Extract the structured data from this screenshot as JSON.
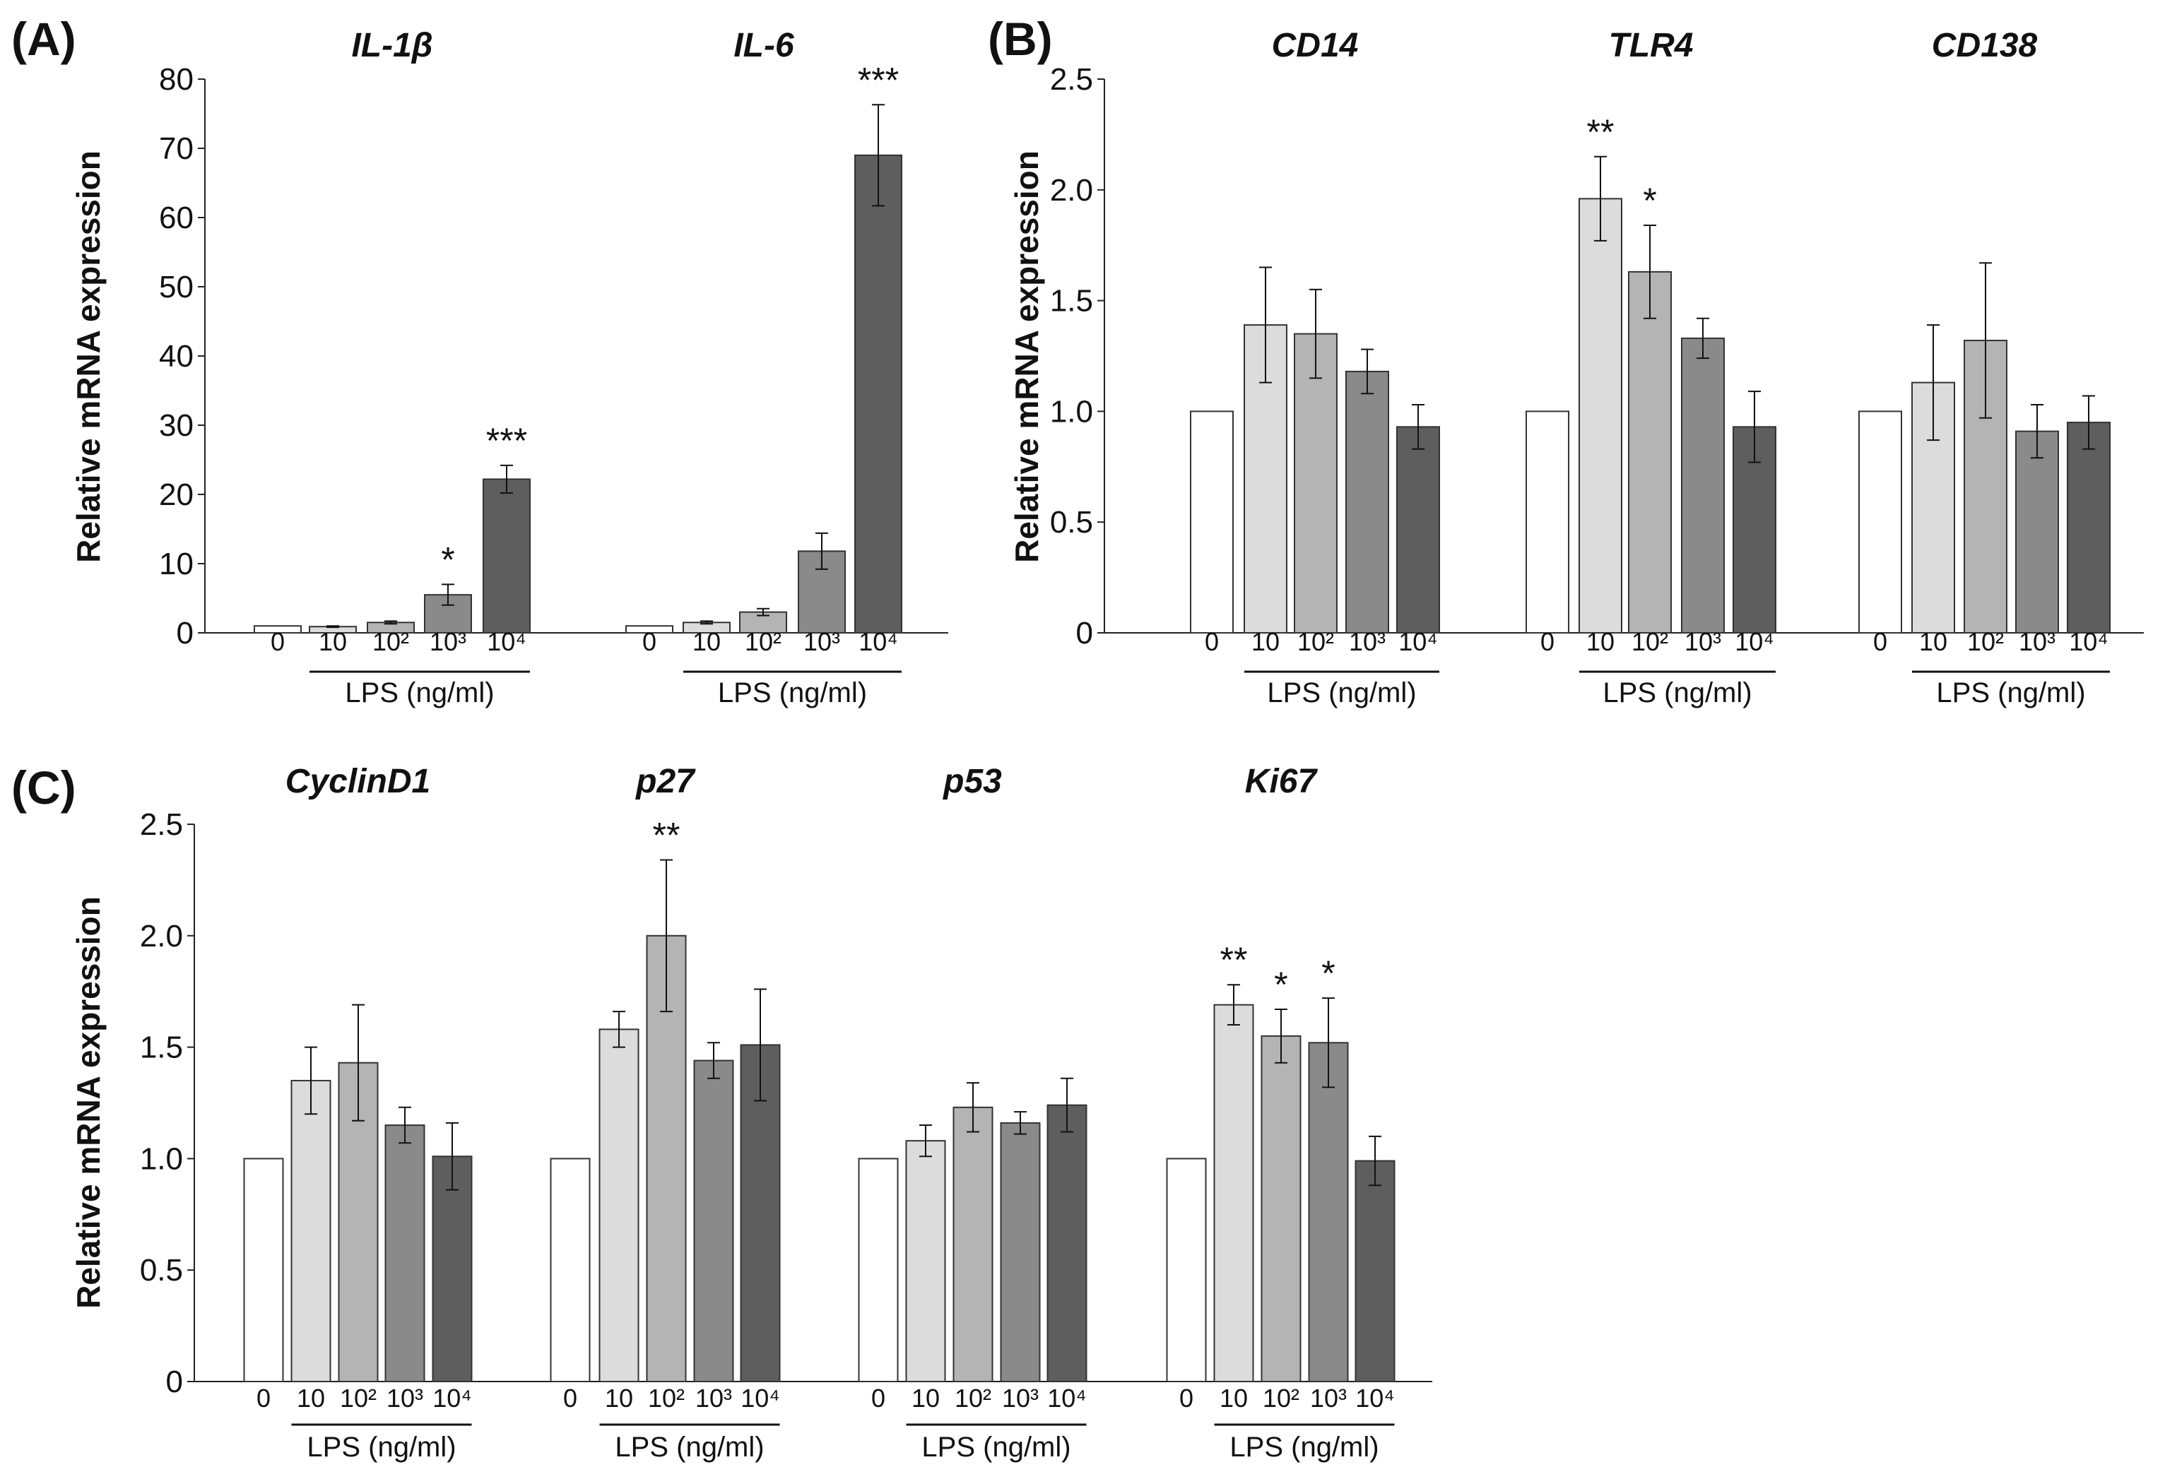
{
  "chart_data": {
    "type": "bar",
    "ylabel": "Relative mRNA expression",
    "xlabel": "LPS (ng/ml)",
    "categories": [
      "0",
      "10",
      "10²",
      "10³",
      "10⁴"
    ],
    "colors": [
      "#ffffff",
      "#dcdcdc",
      "#b4b4b4",
      "#8a8a8a",
      "#5e5e5e"
    ],
    "panels": [
      {
        "label": "(A)",
        "ylim": [
          0,
          80
        ],
        "yticks": [
          "0",
          "10",
          "20",
          "30",
          "40",
          "50",
          "60",
          "70",
          "80"
        ],
        "groups": [
          {
            "title": "IL-1β",
            "values": [
              1,
              0.9,
              1.5,
              5.5,
              22.2
            ],
            "errors": [
              0,
              0.1,
              0.2,
              1.5,
              2.0
            ],
            "stars": [
              "",
              "",
              "",
              "*",
              "***"
            ]
          },
          {
            "title": "IL-6",
            "values": [
              1,
              1.5,
              3.0,
              11.8,
              69.0
            ],
            "errors": [
              0,
              0.2,
              0.5,
              2.6,
              7.3
            ],
            "stars": [
              "",
              "",
              "",
              "",
              "***"
            ]
          }
        ]
      },
      {
        "label": "(B)",
        "ylim": [
          0,
          2.5
        ],
        "yticks": [
          "0",
          "0.5",
          "1.0",
          "1.5",
          "2.0",
          "2.5"
        ],
        "groups": [
          {
            "title": "CD14",
            "values": [
              1,
              1.39,
              1.35,
              1.18,
              0.93
            ],
            "errors": [
              0,
              0.26,
              0.2,
              0.1,
              0.1
            ],
            "stars": [
              "",
              "",
              "",
              "",
              ""
            ]
          },
          {
            "title": "TLR4",
            "values": [
              1,
              1.96,
              1.63,
              1.33,
              0.93
            ],
            "errors": [
              0,
              0.19,
              0.21,
              0.09,
              0.16
            ],
            "stars": [
              "",
              "**",
              "*",
              "",
              ""
            ]
          },
          {
            "title": "CD138",
            "values": [
              1,
              1.13,
              1.32,
              0.91,
              0.95
            ],
            "errors": [
              0,
              0.26,
              0.35,
              0.12,
              0.12
            ],
            "stars": [
              "",
              "",
              "",
              "",
              ""
            ]
          }
        ]
      },
      {
        "label": "(C)",
        "ylim": [
          0,
          2.5
        ],
        "yticks": [
          "0",
          "0.5",
          "1.0",
          "1.5",
          "2.0",
          "2.5"
        ],
        "groups": [
          {
            "title": "CyclinD1",
            "values": [
              1,
              1.35,
              1.43,
              1.15,
              1.01
            ],
            "errors": [
              0,
              0.15,
              0.26,
              0.08,
              0.15
            ],
            "stars": [
              "",
              "",
              "",
              "",
              ""
            ]
          },
          {
            "title": "p27",
            "values": [
              1,
              1.58,
              2.0,
              1.44,
              1.51
            ],
            "errors": [
              0,
              0.08,
              0.34,
              0.08,
              0.25
            ],
            "stars": [
              "",
              "",
              "**",
              "",
              ""
            ]
          },
          {
            "title": "p53",
            "values": [
              1,
              1.08,
              1.23,
              1.16,
              1.24
            ],
            "errors": [
              0,
              0.07,
              0.11,
              0.05,
              0.12
            ],
            "stars": [
              "",
              "",
              "",
              "",
              ""
            ]
          },
          {
            "title": "Ki67",
            "values": [
              1,
              1.69,
              1.55,
              1.52,
              0.99
            ],
            "errors": [
              0,
              0.09,
              0.12,
              0.2,
              0.11
            ],
            "stars": [
              "",
              "**",
              "*",
              "*",
              ""
            ]
          }
        ]
      }
    ]
  }
}
